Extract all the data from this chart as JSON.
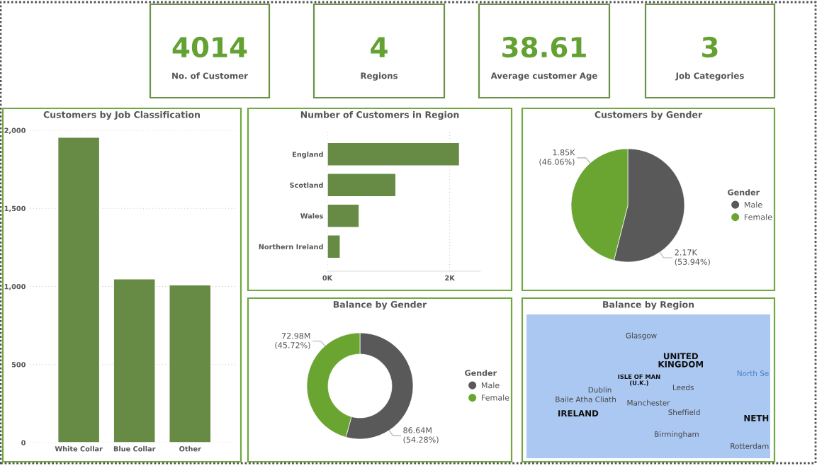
{
  "chart_data": [
    {
      "type": "other",
      "annotations": [
        "4014",
        "No. of Customer"
      ]
    },
    {
      "type": "other",
      "annotations": [
        "4",
        "Regions"
      ]
    },
    {
      "type": "other",
      "annotations": [
        "38.61",
        "Average customer Age"
      ]
    },
    {
      "type": "other",
      "annotations": [
        "3",
        "Job Categories"
      ]
    },
    {
      "type": "bar",
      "title": "Customers by Job Classification",
      "categories": [
        "White Collar",
        "Blue Collar",
        "Other"
      ],
      "values": [
        1955,
        1049,
        1010
      ],
      "color": "#678b45",
      "ylim": [
        0,
        2000
      ],
      "yticks": [
        0,
        500,
        {
          "value": 1000,
          "label": "1,000"
        },
        {
          "value": 1500,
          "label": "1,500"
        },
        {
          "value": 2000,
          "label": "2,000"
        }
      ],
      "grid": "y"
    },
    {
      "type": "bar",
      "orientation": "horizontal",
      "title": "Number of Customers in Region",
      "categories": [
        "England",
        "Scotland",
        "Wales",
        "Northern Ireland"
      ],
      "values": [
        2160,
        1120,
        520,
        210
      ],
      "color": "#678b45",
      "xlim": [
        0,
        2500
      ],
      "xticks": [
        {
          "value": 0,
          "label": "0K"
        },
        {
          "value": 2000,
          "label": "2K"
        }
      ],
      "grid": "x"
    },
    {
      "type": "pie",
      "title": "Customers by Gender",
      "categories": [
        "Male",
        "Female"
      ],
      "values": [
        53.94,
        46.06
      ],
      "colors": [
        "#595959",
        "#6aa532"
      ],
      "value_labels": [
        "2.17K\n(53.94%)",
        "1.85K\n(46.06%)"
      ],
      "legend_title": "Gender",
      "legend": "right"
    },
    {
      "type": "donut",
      "title": "Balance by Gender",
      "categories": [
        "Male",
        "Female"
      ],
      "values": [
        54.28,
        45.72
      ],
      "colors": [
        "#595959",
        "#6aa532"
      ],
      "value_labels": [
        "86.64M\n(54.28%)",
        "72.98M\n(45.72%)"
      ],
      "legend_title": "Gender",
      "legend": "right"
    },
    {
      "type": "other",
      "title": "Balance by Region",
      "annotations": [
        "Glasgow",
        "UNITED\nKINGDOM",
        "ISLE OF MAN\n(U.K.)",
        "Dublin",
        "Baile Atha Cliath",
        "IRELAND",
        "Leeds",
        "Manchester",
        "Sheffield",
        "Birmingham",
        "North Se",
        "NETH",
        "Rotterdam"
      ]
    }
  ]
}
